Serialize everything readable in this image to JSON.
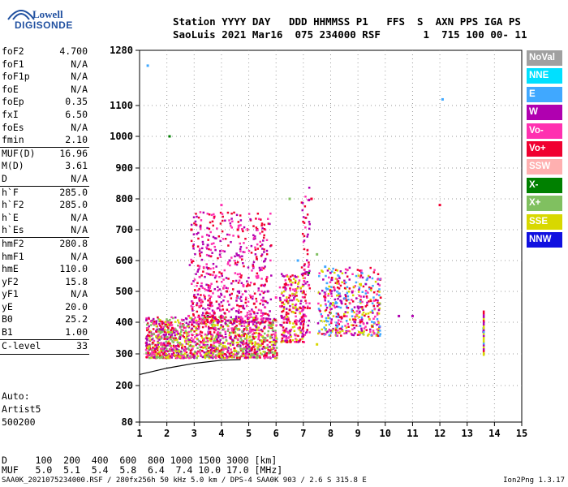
{
  "logo": {
    "line1": "Lowell",
    "line2": "DIGISONDE"
  },
  "header": {
    "line1": "Station YYYY DAY   DDD HHMMSS P1   FFS  S  AXN PPS IGA PS",
    "line2": "SaoLuis 2021 Mar16  075 234000 RSF       1  715 100 00- 11"
  },
  "params_groups": [
    [
      {
        "label": "foF2",
        "value": "4.700"
      },
      {
        "label": "foF1",
        "value": "N/A"
      },
      {
        "label": "foF1p",
        "value": "N/A"
      },
      {
        "label": "foE",
        "value": "N/A"
      },
      {
        "label": "foEp",
        "value": "0.35"
      },
      {
        "label": "fxI",
        "value": "6.50"
      },
      {
        "label": "foEs",
        "value": "N/A"
      },
      {
        "label": "fmin",
        "value": "2.10"
      }
    ],
    [
      {
        "label": "MUF(D)",
        "value": "16.96"
      },
      {
        "label": "M(D)",
        "value": "3.61"
      },
      {
        "label": "D",
        "value": "N/A"
      }
    ],
    [
      {
        "label": "h`F",
        "value": "285.0"
      },
      {
        "label": "h`F2",
        "value": "285.0"
      },
      {
        "label": "h`E",
        "value": "N/A"
      },
      {
        "label": "h`Es",
        "value": "N/A"
      }
    ],
    [
      {
        "label": "hmF2",
        "value": "280.8"
      },
      {
        "label": "hmF1",
        "value": "N/A"
      },
      {
        "label": "hmE",
        "value": "110.0"
      },
      {
        "label": "yF2",
        "value": "15.8"
      },
      {
        "label": "yF1",
        "value": "N/A"
      },
      {
        "label": "yE",
        "value": "20.0"
      },
      {
        "label": "B0",
        "value": "25.2"
      },
      {
        "label": "B1",
        "value": "1.00"
      }
    ],
    [
      {
        "label": "C-level",
        "value": "33"
      }
    ]
  ],
  "auto_text": [
    "Auto:",
    "Artist5",
    "500200"
  ],
  "legend": [
    {
      "label": "NoVal",
      "color": "#a0a0a0"
    },
    {
      "label": "NNE",
      "color": "#00e0ff"
    },
    {
      "label": "E",
      "color": "#40a8ff"
    },
    {
      "label": "W",
      "color": "#b000b0"
    },
    {
      "label": "Vo-",
      "color": "#ff30b0"
    },
    {
      "label": "Vo+",
      "color": "#f00030"
    },
    {
      "label": "SSW",
      "color": "#ffb0b0"
    },
    {
      "label": "X-",
      "color": "#008000"
    },
    {
      "label": "X+",
      "color": "#80c060"
    },
    {
      "label": "SSE",
      "color": "#d8d800"
    },
    {
      "label": "NNW",
      "color": "#1010e0"
    }
  ],
  "bottom": {
    "d_line": "D     100  200  400  600  800 1000 1500 3000 [km]",
    "muf_line": "MUF   5.0  5.1  5.4  5.8  6.4  7.4 10.0 17.0 [MHz]"
  },
  "footer": {
    "left": "SAA0K_2021075234000.RSF / 280fx256h 50 kHz 5.0 km / DPS-4 SAA0K 903 / 2.6 S 315.8 E",
    "right": "Ion2Png 1.3.17"
  },
  "chart_data": {
    "type": "scatter",
    "xlabel": "",
    "ylabel": "",
    "xlim": [
      1,
      15
    ],
    "ylim_ticks": [
      80,
      200,
      300,
      400,
      500,
      600,
      700,
      800,
      900,
      1000,
      1100,
      1280
    ],
    "x_ticks": [
      1,
      2,
      3,
      4,
      5,
      6,
      7,
      8,
      9,
      10,
      11,
      12,
      13,
      14,
      15
    ],
    "y_scale": "nonlinear (compressed near 80 km)",
    "series": [
      {
        "color": "#d8d800",
        "points": [
          [
            1.5,
            320
          ],
          [
            2.5,
            330
          ],
          [
            3.5,
            340
          ],
          [
            4.5,
            350
          ],
          [
            5.5,
            355
          ],
          [
            3,
            300
          ],
          [
            4,
            310
          ],
          [
            6.5,
            340
          ],
          [
            7.5,
            330
          ],
          [
            8.2,
            380
          ]
        ]
      },
      {
        "color": "#b000b0",
        "points": [
          [
            1.8,
            350
          ],
          [
            3,
            400
          ],
          [
            4,
            420
          ],
          [
            5,
            400
          ],
          [
            6.2,
            420
          ],
          [
            7,
            450
          ],
          [
            8,
            460
          ],
          [
            9,
            450
          ],
          [
            3.5,
            650
          ],
          [
            4.3,
            600
          ],
          [
            5.7,
            500
          ],
          [
            10.5,
            420
          ],
          [
            11,
            420
          ],
          [
            13.6,
            370
          ]
        ]
      },
      {
        "color": "#f00030",
        "points": [
          [
            2.2,
            380
          ],
          [
            3.2,
            450
          ],
          [
            4.2,
            500
          ],
          [
            5.2,
            460
          ],
          [
            6.5,
            440
          ],
          [
            7.8,
            480
          ],
          [
            8.5,
            420
          ],
          [
            2.9,
            700
          ],
          [
            4.6,
            700
          ],
          [
            7.3,
            800
          ],
          [
            12,
            780
          ]
        ]
      },
      {
        "color": "#ff30b0",
        "points": [
          [
            1.5,
            300
          ],
          [
            2.8,
            420
          ],
          [
            3.8,
            550
          ],
          [
            4.8,
            520
          ],
          [
            6,
            480
          ],
          [
            7.2,
            520
          ],
          [
            8.8,
            500
          ],
          [
            9.6,
            470
          ],
          [
            4,
            780
          ]
        ]
      },
      {
        "color": "#40a8ff",
        "points": [
          [
            1.3,
            1230
          ],
          [
            4.6,
            480
          ],
          [
            6.8,
            600
          ],
          [
            7.8,
            580
          ],
          [
            12.1,
            1120
          ],
          [
            13.6,
            380
          ]
        ]
      },
      {
        "color": "#80c060",
        "points": [
          [
            2.5,
            360
          ],
          [
            4.5,
            380
          ],
          [
            6.5,
            800
          ],
          [
            7.5,
            620
          ],
          [
            8,
            430
          ],
          [
            9.8,
            460
          ]
        ]
      },
      {
        "color": "#008000",
        "points": [
          [
            2.1,
            1000
          ],
          [
            3.5,
            420
          ],
          [
            5.5,
            400
          ],
          [
            7.2,
            560
          ]
        ]
      }
    ],
    "trace": {
      "color": "#000000",
      "points": [
        [
          1,
          235
        ],
        [
          2,
          255
        ],
        [
          3,
          270
        ],
        [
          4,
          280
        ],
        [
          4.7,
          282
        ]
      ]
    }
  }
}
